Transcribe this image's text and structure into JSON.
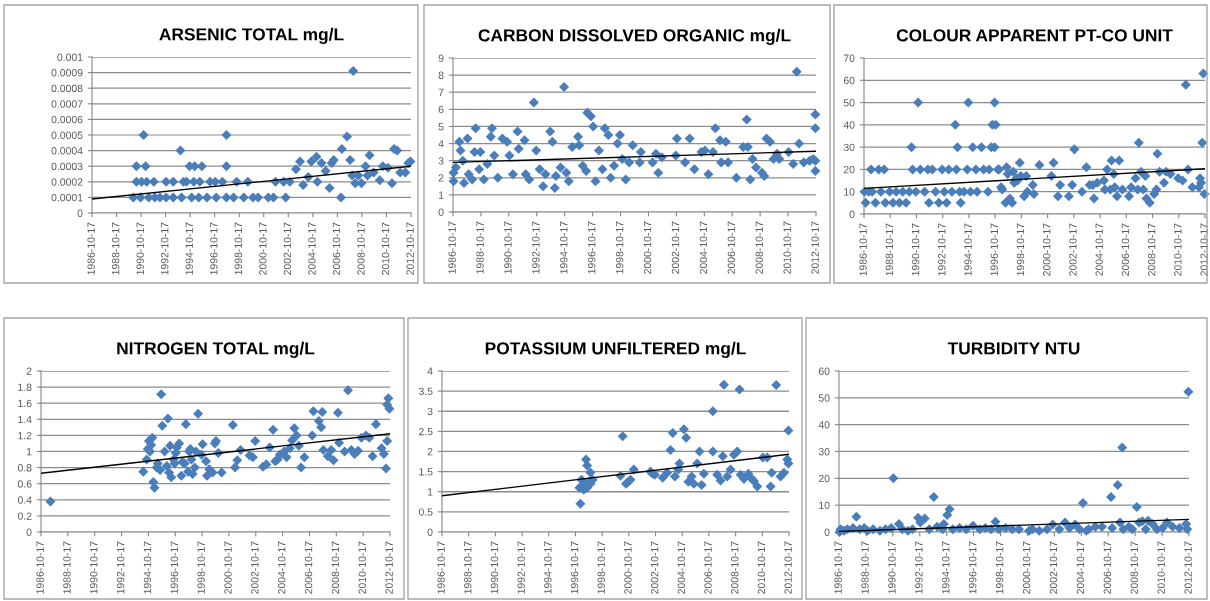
{
  "chart_data": [
    {
      "type": "scatter",
      "title": "ARSENIC TOTAL mg/L",
      "grid": "y",
      "xlim": [
        "1986-10-17",
        "2012-10-17"
      ],
      "ylim": [
        0,
        0.001
      ],
      "yticks": [
        0,
        0.0001,
        0.0002,
        0.0003,
        0.0004,
        0.0005,
        0.0006,
        0.0007,
        0.0008,
        0.0009,
        0.001
      ],
      "xticks": [
        "1986-10-17",
        "1988-10-17",
        "1990-10-17",
        "1992-10-17",
        "1994-10-17",
        "1996-10-17",
        "1998-10-17",
        "2000-10-17",
        "2002-10-17",
        "2004-10-17",
        "2006-10-17",
        "2008-10-17",
        "2010-10-17",
        "2012-10-17"
      ],
      "series": [
        {
          "marker": "diamond",
          "color": "#4a7ebb",
          "x": [
            "1990-06",
            "1991-01",
            "1991-03",
            "1994-01",
            "1994-10",
            "1995-03",
            "1995-10",
            "1997-10",
            "1997-10",
            "1990-06",
            "1990-11",
            "1991-04",
            "1991-11",
            "1992-11",
            "1993-06",
            "1994-04",
            "1994-07",
            "1995-02",
            "1995-08",
            "1996-06",
            "1996-11",
            "1997-06",
            "1998-08",
            "1999-07",
            "2001-10",
            "2002-06",
            "2002-12",
            "1990-03",
            "1990-10",
            "1991-06",
            "1991-12",
            "1992-05",
            "1992-11",
            "1993-06",
            "1994-02",
            "1994-12",
            "1995-07",
            "1996-03",
            "1996-12",
            "1997-10",
            "1998-05",
            "1999-03",
            "1999-12",
            "2000-05",
            "2001-03",
            "2001-08",
            "2002-08",
            "2003-06",
            "2003-10",
            "2004-01",
            "2004-06",
            "2004-09",
            "2005-02",
            "2005-03",
            "2005-07",
            "2005-11",
            "2006-03",
            "2006-05",
            "2006-07",
            "2007-02",
            "2007-03",
            "2007-08",
            "2007-11",
            "2008-01",
            "2008-02",
            "2008-04",
            "2008-07",
            "2008-10",
            "2009-02",
            "2009-04",
            "2009-06",
            "2009-10",
            "2010-04",
            "2010-07",
            "2010-12",
            "2011-04",
            "2011-06",
            "2011-09",
            "2011-12",
            "2012-05",
            "2012-08",
            "2012-10"
          ],
          "values": [
            0.0003,
            0.0005,
            0.0003,
            0.0004,
            0.0003,
            0.0003,
            0.0003,
            0.0005,
            0.0003,
            0.0002,
            0.0002,
            0.0002,
            0.0002,
            0.0002,
            0.0002,
            0.0002,
            0.0002,
            0.0002,
            0.0002,
            0.0002,
            0.0002,
            0.0002,
            0.0002,
            0.0002,
            0.0002,
            0.0002,
            0.0002,
            0.0001,
            0.0001,
            0.0001,
            0.0001,
            0.0001,
            0.0001,
            0.0001,
            0.0001,
            0.0001,
            0.0001,
            0.0001,
            0.0001,
            0.0001,
            0.0001,
            0.0001,
            0.0001,
            0.0001,
            0.0001,
            0.0001,
            0.0001,
            0.00028,
            0.00033,
            0.00018,
            0.00023,
            0.00033,
            0.00036,
            0.0002,
            0.00032,
            0.00027,
            0.00016,
            0.00032,
            0.00034,
            0.0001,
            0.00041,
            0.00049,
            0.00034,
            0.00024,
            0.00091,
            0.00019,
            0.00024,
            0.00019,
            0.0003,
            0.00024,
            0.00037,
            0.00026,
            0.00021,
            0.0003,
            0.00029,
            0.00019,
            0.00041,
            0.0004,
            0.00026,
            0.00026,
            0.00032,
            0.00033
          ]
        },
        {
          "type": "line",
          "marker": "none",
          "line_style": "solid",
          "color": "#000000",
          "x": [
            "1986-10-17",
            "2012-10-17"
          ],
          "values": [
            9e-05,
            0.0003
          ]
        }
      ]
    },
    {
      "type": "scatter",
      "title": "CARBON DISSOLVED ORGANIC mg/L",
      "grid": "y",
      "xlim": [
        "1986-10-17",
        "2012-10-17"
      ],
      "ylim": [
        0,
        9
      ],
      "yticks": [
        0,
        1,
        2,
        3,
        4,
        5,
        6,
        7,
        8,
        9
      ],
      "xticks": [
        "1986-10-17",
        "1988-10-17",
        "1990-10-17",
        "1992-10-17",
        "1994-10-17",
        "1996-10-17",
        "1998-10-17",
        "2000-10-17",
        "2002-10-17",
        "2004-10-17",
        "2006-10-17",
        "2008-10-17",
        "2010-10-17",
        "2012-10-17"
      ],
      "series": [
        {
          "marker": "diamond",
          "color": "#4a7ebb",
          "x": [
            "1986-11",
            "1986-11",
            "1987-01",
            "1987-04",
            "1987-05",
            "1987-07",
            "1987-08",
            "1987-11",
            "1987-12",
            "1988-03",
            "1988-05",
            "1988-06",
            "1988-09",
            "1988-10",
            "1989-01",
            "1989-04",
            "1989-07",
            "1989-08",
            "1989-10",
            "1990-01",
            "1990-05",
            "1990-09",
            "1990-11",
            "1991-02",
            "1991-06",
            "1991-07",
            "1991-12",
            "1992-01",
            "1992-04",
            "1992-08",
            "1992-10",
            "1993-01",
            "1993-04",
            "1993-06",
            "1993-10",
            "1993-12",
            "1994-02",
            "1994-03",
            "1994-07",
            "1994-10",
            "1994-12",
            "1995-02",
            "1995-05",
            "1995-10",
            "1995-11",
            "1996-02",
            "1996-05",
            "1996-06",
            "1996-09",
            "1996-11",
            "1997-01",
            "1997-04",
            "1997-07",
            "1997-09",
            "1997-12",
            "1998-02",
            "1998-05",
            "1998-08",
            "1998-10",
            "1998-12",
            "1999-03",
            "1999-06",
            "1999-09",
            "2000-03",
            "2000-04",
            "2001-02",
            "2001-05",
            "2001-07",
            "2001-10",
            "2002-10",
            "2002-11",
            "2003-06",
            "2003-10",
            "2004-02",
            "2004-08",
            "2004-11",
            "2005-02",
            "2005-06",
            "2005-08",
            "2005-12",
            "2006-01",
            "2006-05",
            "2006-07",
            "2007-02",
            "2007-08",
            "2007-11",
            "2007-12",
            "2008-02",
            "2008-04",
            "2008-07",
            "2008-12",
            "2009-02",
            "2009-04",
            "2009-07",
            "2009-10",
            "2010-01",
            "2010-03",
            "2010-11",
            "2011-03",
            "2011-06",
            "2011-08",
            "2011-12",
            "2012-05",
            "2012-08",
            "2012-10",
            "2012-10",
            "2012-10",
            "2012-10"
          ],
          "values": [
            2.3,
            1.8,
            2.6,
            4.1,
            3.6,
            3.0,
            1.7,
            4.3,
            2.2,
            1.9,
            3.5,
            4.9,
            2.5,
            3.5,
            1.9,
            2.8,
            4.4,
            4.9,
            3.3,
            2.0,
            4.3,
            4.1,
            3.3,
            2.2,
            4.7,
            3.7,
            4.2,
            2.2,
            1.9,
            6.4,
            3.6,
            2.5,
            1.5,
            2.2,
            4.7,
            4.1,
            1.4,
            2.1,
            2.6,
            7.3,
            2.3,
            1.8,
            3.8,
            4.4,
            3.9,
            2.7,
            2.4,
            5.8,
            5.6,
            5.0,
            1.8,
            3.6,
            2.5,
            4.9,
            4.5,
            2.0,
            2.7,
            4.0,
            4.5,
            3.1,
            1.9,
            2.9,
            3.9,
            2.9,
            3.5,
            2.9,
            3.4,
            2.3,
            3.2,
            3.3,
            4.3,
            2.9,
            4.3,
            2.5,
            3.5,
            3.6,
            2.2,
            3.5,
            4.9,
            4.2,
            2.9,
            4.1,
            2.9,
            2.0,
            3.8,
            5.4,
            3.8,
            1.9,
            3.1,
            2.6,
            2.3,
            2.1,
            4.3,
            4.1,
            3.1,
            3.4,
            3.1,
            3.5,
            2.8,
            8.2,
            4.0,
            2.9,
            3.0,
            3.1,
            5.7,
            4.9,
            3.0,
            2.4
          ]
        },
        {
          "type": "line",
          "marker": "none",
          "line_style": "solid",
          "color": "#000000",
          "x": [
            "1986-10-17",
            "2012-10-17"
          ],
          "values": [
            2.9,
            3.55
          ]
        }
      ]
    },
    {
      "type": "scatter",
      "title": "COLOUR APPARENT PT-CO UNIT",
      "grid": "y",
      "xlim": [
        "1986-10-17",
        "2012-10-17"
      ],
      "ylim": [
        0,
        70
      ],
      "yticks": [
        0,
        10,
        20,
        30,
        40,
        50,
        60,
        70
      ],
      "xticks": [
        "1986-10-17",
        "1988-10-17",
        "1990-10-17",
        "1992-10-17",
        "1994-10-17",
        "1996-10-17",
        "1998-10-17",
        "2000-10-17",
        "2002-10-17",
        "2004-10-17",
        "2006-10-17",
        "2008-10-17",
        "2010-10-17",
        "2012-10-17"
      ],
      "series": [
        {
          "marker": "diamond",
          "color": "#4a7ebb",
          "x": [
            "1986-11",
            "1986-12",
            "1987-03",
            "1987-05",
            "1987-06",
            "1987-09",
            "1987-12",
            "1988-02",
            "1988-05",
            "1988-06",
            "1988-10",
            "1989-01",
            "1989-04",
            "1989-07",
            "1989-10",
            "1990-01",
            "1990-04",
            "1990-06",
            "1990-07",
            "1990-10",
            "1990-12",
            "1991-02",
            "1991-06",
            "1991-09",
            "1991-10",
            "1992-01",
            "1992-04",
            "1992-07",
            "1992-10",
            "1992-12",
            "1993-02",
            "1993-04",
            "1993-07",
            "1993-10",
            "1993-11",
            "1993-12",
            "1994-02",
            "1994-03",
            "1994-06",
            "1994-09",
            "1994-10",
            "1994-12",
            "1995-02",
            "1995-05",
            "1995-06",
            "1995-10",
            "1995-12",
            "1996-04",
            "1996-05",
            "1996-07",
            "1996-08",
            "1996-10",
            "1996-10",
            "1996-11",
            "1997-01",
            "1997-02",
            "1997-04",
            "1997-05",
            "1997-08",
            "1997-09",
            "1997-10",
            "1997-12",
            "1998-02",
            "1998-03",
            "1998-04",
            "1998-06",
            "1998-07",
            "1998-09",
            "1998-10",
            "1999-01",
            "1999-03",
            "1999-04",
            "1999-09",
            "1999-10",
            "2000-03",
            "2001-02",
            "2001-04",
            "2001-08",
            "2001-10",
            "2002-06",
            "2002-09",
            "2002-11",
            "2003-06",
            "2003-10",
            "2004-01",
            "2004-04",
            "2004-05",
            "2004-08",
            "2005-02",
            "2005-03",
            "2005-05",
            "2005-08",
            "2005-09",
            "2005-11",
            "2005-12",
            "2006-02",
            "2006-04",
            "2006-07",
            "2007-01",
            "2007-03",
            "2007-07",
            "2007-09",
            "2007-10",
            "2007-12",
            "2008-02",
            "2008-04",
            "2008-05",
            "2008-08",
            "2008-12",
            "2009-02",
            "2009-03",
            "2009-05",
            "2009-09",
            "2009-11",
            "2010-03",
            "2010-10",
            "2011-02",
            "2011-05",
            "2011-07",
            "2011-11",
            "2012-05",
            "2012-06",
            "2012-07",
            "2012-08",
            "2012-09",
            "2012-10"
          ],
          "values": [
            10,
            5,
            10,
            20,
            10,
            5,
            20,
            10,
            20,
            5,
            10,
            5,
            10,
            5,
            10,
            5,
            10,
            30,
            20,
            10,
            50,
            20,
            10,
            20,
            5,
            20,
            10,
            5,
            20,
            10,
            5,
            20,
            10,
            40,
            20,
            30,
            10,
            5,
            10,
            20,
            50,
            10,
            30,
            20,
            10,
            30,
            20,
            10,
            20,
            30,
            40,
            30,
            50,
            40,
            20,
            20,
            12,
            11,
            5,
            21,
            18,
            7,
            5,
            19,
            14,
            16,
            15,
            23,
            17,
            8,
            17,
            10,
            13,
            9,
            22,
            17,
            23,
            8,
            13,
            8,
            13,
            29,
            10,
            21,
            13,
            13,
            7,
            14,
            15,
            11,
            20,
            11,
            24,
            18,
            12,
            8,
            24,
            11,
            8,
            12,
            16,
            11,
            32,
            19,
            11,
            17,
            7,
            5,
            9,
            11,
            27,
            19,
            14,
            19,
            18,
            16,
            15,
            58,
            20,
            12,
            12,
            16,
            14,
            32,
            63,
            9
          ]
        },
        {
          "type": "line",
          "marker": "none",
          "line_style": "solid",
          "color": "#000000",
          "x": [
            "1986-10-17",
            "2012-10-17"
          ],
          "values": [
            11.5,
            20.3
          ]
        }
      ]
    },
    {
      "type": "scatter",
      "title": "NITROGEN TOTAL mg/L",
      "grid": "y",
      "xlim": [
        "1986-10-17",
        "2012-10-17"
      ],
      "ylim": [
        0,
        2
      ],
      "yticks": [
        0,
        0.2,
        0.4,
        0.6,
        0.8,
        1,
        1.2,
        1.4,
        1.6,
        1.8,
        2
      ],
      "xticks": [
        "1986-10-17",
        "1988-10-17",
        "1990-10-17",
        "1992-10-17",
        "1994-10-17",
        "1996-10-17",
        "1998-10-17",
        "2000-10-17",
        "2002-10-17",
        "2004-10-17",
        "2006-10-17",
        "2008-10-17",
        "2010-10-17",
        "2012-10-17"
      ],
      "series": [
        {
          "marker": "diamond",
          "color": "#4a7ebb",
          "x": [
            "1987-07",
            "1994-06",
            "1994-09",
            "1994-10",
            "1994-11",
            "1994-12",
            "1995-01",
            "1995-02",
            "1995-03",
            "1995-04",
            "1995-06",
            "1995-07",
            "1995-09",
            "1995-10",
            "1995-11",
            "1996-01",
            "1996-03",
            "1996-04",
            "1996-05",
            "1996-06",
            "1996-07",
            "1996-09",
            "1996-10",
            "1996-11",
            "1996-12",
            "1997-02",
            "1997-04",
            "1997-05",
            "1997-07",
            "1997-08",
            "1997-10",
            "1997-11",
            "1997-12",
            "1998-01",
            "1998-02",
            "1998-04",
            "1998-05",
            "1998-07",
            "1998-10",
            "1998-11",
            "1999-02",
            "1999-03",
            "1999-05",
            "1999-08",
            "1999-10",
            "1999-11",
            "2000-01",
            "2000-04",
            "2001-02",
            "2001-04",
            "2001-06",
            "2001-09",
            "2002-05",
            "2002-08",
            "2002-10",
            "2003-05",
            "2003-08",
            "2003-11",
            "2004-02",
            "2004-04",
            "2004-06",
            "2004-08",
            "2004-12",
            "2005-02",
            "2005-05",
            "2005-07",
            "2005-09",
            "2005-11",
            "2006-01",
            "2006-03",
            "2006-06",
            "2007-01",
            "2007-02",
            "2007-07",
            "2007-09",
            "2007-10",
            "2007-11",
            "2008-03",
            "2008-06",
            "2008-08",
            "2008-12",
            "2009-01",
            "2009-06",
            "2009-09",
            "2009-12",
            "2010-03",
            "2010-06",
            "2010-09",
            "2011-01",
            "2011-04",
            "2011-07",
            "2011-10",
            "2012-03",
            "2012-05",
            "2012-07",
            "2012-08",
            "2012-08",
            "2012-09",
            "2012-10"
          ],
          "values": [
            0.38,
            0.75,
            0.9,
            1.03,
            1.13,
            1.0,
            1.08,
            1.17,
            0.62,
            0.55,
            0.8,
            0.85,
            0.77,
            1.71,
            1.32,
            1.0,
            0.82,
            1.41,
            0.74,
            1.07,
            0.68,
            0.9,
            0.85,
            0.98,
            1.05,
            1.1,
            0.7,
            0.87,
            0.85,
            1.34,
            0.75,
            1.0,
            1.03,
            0.9,
            0.72,
            0.8,
            1.0,
            1.47,
            0.96,
            1.09,
            0.88,
            0.7,
            0.78,
            0.74,
            1.1,
            1.13,
            0.98,
            0.74,
            1.33,
            0.8,
            0.89,
            1.02,
            0.95,
            0.93,
            1.13,
            0.81,
            0.84,
            1.05,
            1.27,
            0.88,
            0.9,
            0.96,
            1.0,
            0.93,
            1.04,
            1.14,
            1.29,
            1.2,
            1.07,
            0.8,
            0.93,
            1.2,
            1.5,
            1.38,
            1.3,
            1.49,
            1.02,
            0.94,
            1.02,
            0.89,
            1.48,
            1.11,
            1.0,
            1.76,
            1.02,
            0.97,
            1.01,
            1.17,
            1.2,
            1.17,
            0.94,
            1.34,
            1.04,
            0.97,
            0.79,
            1.13,
            1.58,
            1.66,
            1.53
          ]
        },
        {
          "type": "line",
          "marker": "none",
          "line_style": "solid",
          "color": "#000000",
          "x": [
            "1986-10-17",
            "2012-10-17"
          ],
          "values": [
            0.73,
            1.22
          ]
        }
      ]
    },
    {
      "type": "scatter",
      "title": "POTASSIUM UNFILTERED mg/L",
      "grid": "y",
      "xlim": [
        "1986-10-17",
        "2012-10-17"
      ],
      "ylim": [
        0,
        4
      ],
      "yticks": [
        0,
        0.5,
        1,
        1.5,
        2,
        2.5,
        3,
        3.5,
        4
      ],
      "xticks": [
        "1986-10-17",
        "1988-10-17",
        "1990-10-17",
        "1992-10-17",
        "1994-10-17",
        "1996-10-17",
        "1998-10-17",
        "2000-10-17",
        "2002-10-17",
        "2004-10-17",
        "2006-10-17",
        "2008-10-17",
        "2010-10-17",
        "2012-10-17"
      ],
      "series": [
        {
          "marker": "diamond",
          "color": "#4a7ebb",
          "x": [
            "1997-02",
            "1997-03",
            "1997-04",
            "1997-06",
            "1997-07",
            "1997-08",
            "1997-09",
            "1997-09",
            "1997-11",
            "1997-12",
            "1997-12",
            "1998-02",
            "2000-03",
            "2000-05",
            "2000-08",
            "2000-10",
            "2000-12",
            "2001-03",
            "2002-06",
            "2002-08",
            "2002-10",
            "2003-05",
            "2003-09",
            "2003-12",
            "2004-02",
            "2004-04",
            "2004-07",
            "2004-08",
            "2004-12",
            "2005-02",
            "2005-04",
            "2005-07",
            "2005-09",
            "2005-12",
            "2006-02",
            "2006-04",
            "2006-06",
            "2007-02",
            "2007-02",
            "2007-06",
            "2007-09",
            "2007-11",
            "2007-12",
            "2008-03",
            "2008-06",
            "2008-09",
            "2008-12",
            "2009-02",
            "2009-03",
            "2009-06",
            "2009-10",
            "2009-12",
            "2010-03",
            "2010-06",
            "2010-11",
            "2011-03",
            "2011-06",
            "2011-07",
            "2011-11",
            "2012-03",
            "2012-06",
            "2012-09",
            "2012-10",
            "2012-10"
          ],
          "values": [
            1.1,
            0.7,
            1.3,
            1.05,
            1.2,
            1.8,
            1.65,
            1.1,
            1.25,
            1.48,
            1.2,
            1.3,
            1.4,
            2.38,
            1.2,
            1.25,
            1.3,
            1.55,
            1.5,
            1.45,
            1.42,
            1.35,
            1.47,
            2.04,
            2.46,
            1.38,
            1.55,
            1.7,
            2.55,
            2.34,
            1.25,
            1.38,
            1.2,
            1.7,
            2.0,
            1.17,
            1.45,
            3.0,
            2.0,
            1.42,
            1.28,
            1.88,
            3.66,
            1.38,
            1.55,
            1.92,
            2.0,
            3.54,
            1.42,
            1.32,
            1.45,
            1.35,
            1.27,
            1.13,
            1.85,
            1.85,
            1.13,
            1.47,
            3.65,
            1.38,
            1.47,
            1.8,
            1.7,
            2.52
          ]
        },
        {
          "type": "line",
          "marker": "none",
          "line_style": "solid",
          "color": "#000000",
          "x": [
            "1986-10-17",
            "2012-10-17"
          ],
          "values": [
            0.9,
            1.93
          ]
        }
      ]
    },
    {
      "type": "scatter",
      "title": "TURBIDITY NTU",
      "grid": "y",
      "xlim": [
        "1986-10-17",
        "2012-10-17"
      ],
      "ylim": [
        0,
        60
      ],
      "yticks": [
        0,
        10,
        20,
        30,
        40,
        50,
        60
      ],
      "xticks": [
        "1986-10-17",
        "1988-10-17",
        "1990-10-17",
        "1992-10-17",
        "1994-10-17",
        "1996-10-17",
        "1998-10-17",
        "2000-10-17",
        "2002-10-17",
        "2004-10-17",
        "2006-10-17",
        "2008-10-17",
        "2010-10-17",
        "2012-10-17"
      ],
      "series": [
        {
          "marker": "diamond",
          "color": "#4a7ebb",
          "x": [
            "1986-11",
            "1986-12",
            "1987-03",
            "1987-06",
            "1987-11",
            "1988-02",
            "1988-05",
            "1988-09",
            "1988-12",
            "1989-05",
            "1989-11",
            "1990-04",
            "1990-09",
            "1990-11",
            "1991-04",
            "1991-07",
            "1991-12",
            "1992-04",
            "1992-09",
            "1992-11",
            "1993-03",
            "1993-07",
            "1993-11",
            "1994-02",
            "1994-07",
            "1994-08",
            "1994-11",
            "1995-01",
            "1995-04",
            "1995-10",
            "1996-04",
            "1996-10",
            "1997-04",
            "1997-09",
            "1998-02",
            "1998-06",
            "1998-09",
            "1999-03",
            "1999-09",
            "2000-03",
            "2000-12",
            "2001-03",
            "2001-09",
            "2002-04",
            "2002-09",
            "2003-03",
            "2003-08",
            "2003-12",
            "2004-05",
            "2004-09",
            "2004-12",
            "2005-03",
            "2005-05",
            "2005-11",
            "2006-05",
            "2007-01",
            "2007-02",
            "2007-07",
            "2007-09",
            "2007-11",
            "2007-12",
            "2008-05",
            "2008-08",
            "2008-12",
            "2009-02",
            "2009-05",
            "2009-08",
            "2009-10",
            "2010-02",
            "2010-06",
            "2010-11",
            "2011-03",
            "2011-08",
            "2012-02",
            "2012-08",
            "2012-09",
            "2012-10"
          ],
          "values": [
            0,
            1,
            0.5,
            1,
            1.5,
            5.7,
            1,
            1.5,
            0.5,
            1,
            0.5,
            1,
            1.5,
            20,
            3,
            1,
            0.5,
            1,
            5.3,
            3.5,
            5,
            1,
            13,
            2,
            1,
            3,
            6.3,
            8.5,
            1,
            1.5,
            1,
            2.3,
            1,
            1.5,
            1,
            3.8,
            1,
            1.5,
            1,
            1,
            0.5,
            1,
            0.5,
            1,
            2.8,
            1,
            3.5,
            1.5,
            2.8,
            1,
            10.8,
            0.5,
            1,
            2,
            2,
            13,
            1.5,
            17.5,
            3.5,
            31.5,
            1,
            2,
            1,
            9.3,
            3.5,
            4,
            1,
            4.2,
            3,
            1,
            1.5,
            3.5,
            2,
            1.5,
            3,
            1,
            52.3
          ]
        },
        {
          "type": "line",
          "marker": "none",
          "line_style": "solid",
          "color": "#000000",
          "x": [
            "1986-10-17",
            "2012-10-17"
          ],
          "values": [
            0.2,
            4.7
          ]
        }
      ]
    }
  ]
}
